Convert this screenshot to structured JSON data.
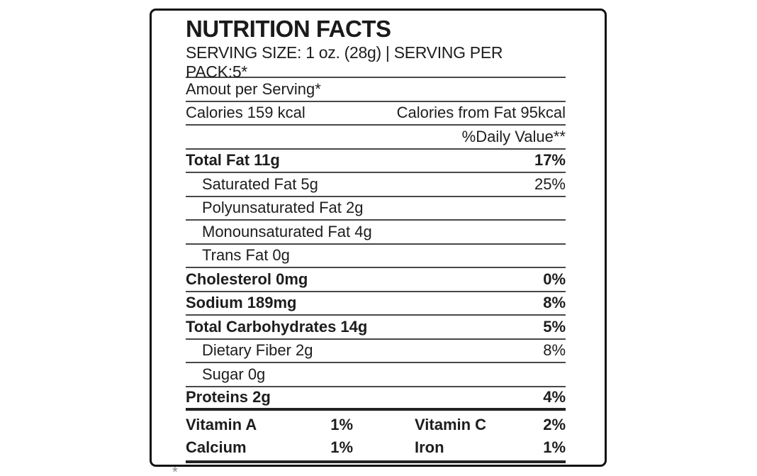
{
  "label": {
    "title": "NUTRITION FACTS",
    "serving_line": "SERVING SIZE: 1 oz. (28g) | SERVING PER PACK:5*",
    "amount_per_serving": "Amout per Serving*",
    "calories": "Calories 159 kcal",
    "calories_from_fat": "Calories from Fat 95kcal",
    "daily_value_header": "%Daily Value**",
    "nutrients": [
      {
        "name": "Total Fat 11g",
        "daily_value": "17%"
      },
      {
        "name": "Saturated Fat 5g",
        "daily_value": "25%"
      },
      {
        "name": "Polyunsaturated Fat 2g",
        "daily_value": ""
      },
      {
        "name": "Monounsaturated Fat 4g",
        "daily_value": ""
      },
      {
        "name": "Trans Fat 0g",
        "daily_value": ""
      },
      {
        "name": "Cholesterol 0mg",
        "daily_value": "0%"
      },
      {
        "name": "Sodium 189mg",
        "daily_value": "8%"
      },
      {
        "name": "Total Carbohydrates 14g",
        "daily_value": "5%"
      },
      {
        "name": "Dietary Fiber 2g",
        "daily_value": "8%"
      },
      {
        "name": "Sugar 0g",
        "daily_value": ""
      },
      {
        "name": "Proteins 2g",
        "daily_value": "4%"
      }
    ],
    "micronutrients": [
      {
        "name": "Vitamin A",
        "value": "1%"
      },
      {
        "name": "Vitamin C",
        "value": "2%"
      },
      {
        "name": "Calcium",
        "value": "1%"
      },
      {
        "name": "Iron",
        "value": "1%"
      }
    ],
    "footnote_mark": "*"
  },
  "colors": {
    "text": "#1d1d1d",
    "rule": "#484848",
    "thick_rule": "#222222",
    "border": "#111111",
    "background": "#ffffff"
  }
}
